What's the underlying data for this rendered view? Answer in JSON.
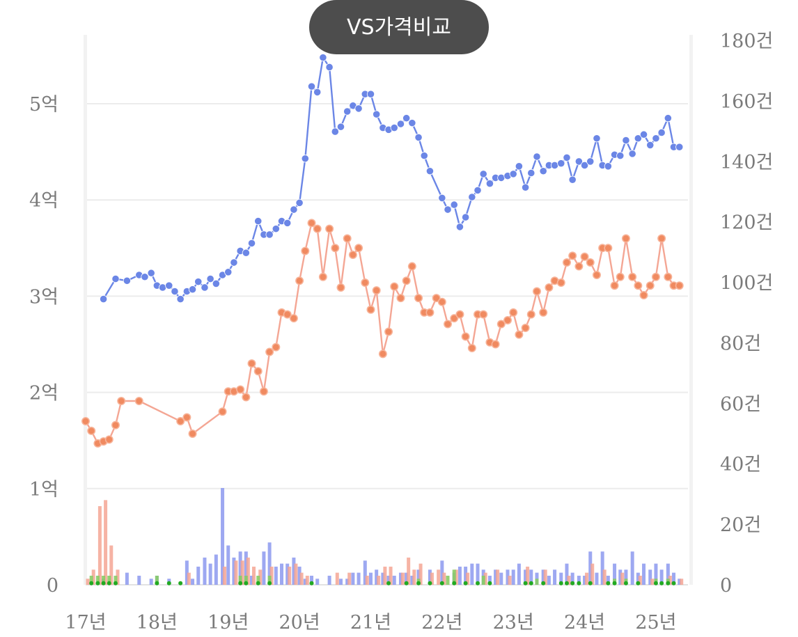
{
  "compare_button": {
    "label": "VS가격비교",
    "color": "#4d4d4d"
  },
  "chart_data": {
    "type": "line",
    "title": "",
    "xlabel": "",
    "ylabel_left": "",
    "ylabel_right": "",
    "grid": true,
    "x_unit": "year",
    "x_ticks": [
      {
        "x": 2017,
        "label": "17년"
      },
      {
        "x": 2018,
        "label": "18년"
      },
      {
        "x": 2019,
        "label": "19년"
      },
      {
        "x": 2020,
        "label": "20년"
      },
      {
        "x": 2021,
        "label": "21년"
      },
      {
        "x": 2022,
        "label": "22년"
      },
      {
        "x": 2023,
        "label": "23년"
      },
      {
        "x": 2024,
        "label": "24년"
      },
      {
        "x": 2025,
        "label": "25년"
      }
    ],
    "left_axis": {
      "range": [
        0,
        5.6
      ],
      "ticks": [
        {
          "v": 0,
          "label": "0"
        },
        {
          "v": 1,
          "label": "1억"
        },
        {
          "v": 2,
          "label": "2억"
        },
        {
          "v": 3,
          "label": "3억"
        },
        {
          "v": 4,
          "label": "4억"
        },
        {
          "v": 5,
          "label": "5억"
        }
      ]
    },
    "right_axis": {
      "range": [
        0,
        180
      ],
      "ticks": [
        {
          "v": 0,
          "label": "0"
        },
        {
          "v": 20,
          "label": "20건"
        },
        {
          "v": 40,
          "label": "40건"
        },
        {
          "v": 60,
          "label": "60건"
        },
        {
          "v": 80,
          "label": "80건"
        },
        {
          "v": 100,
          "label": "100건"
        },
        {
          "v": 120,
          "label": "120건"
        },
        {
          "v": 140,
          "label": "140건"
        },
        {
          "v": 160,
          "label": "160건"
        },
        {
          "v": 180,
          "label": "180건"
        }
      ]
    },
    "series": [
      {
        "axis": "left",
        "kind": "line",
        "color": "#6b86e6",
        "x": [
          2017.25,
          2017.42,
          2017.58,
          2017.75,
          2017.83,
          2017.92,
          2018.0,
          2018.08,
          2018.17,
          2018.25,
          2018.33,
          2018.42,
          2018.5,
          2018.58,
          2018.67,
          2018.75,
          2018.83,
          2018.92,
          2019.0,
          2019.08,
          2019.17,
          2019.25,
          2019.33,
          2019.42,
          2019.5,
          2019.58,
          2019.67,
          2019.75,
          2019.83,
          2019.92,
          2020.0,
          2020.08,
          2020.17,
          2020.25,
          2020.33,
          2020.42,
          2020.5,
          2020.58,
          2020.67,
          2020.75,
          2020.83,
          2020.92,
          2021.0,
          2021.08,
          2021.17,
          2021.25,
          2021.33,
          2021.42,
          2021.5,
          2021.58,
          2021.67,
          2021.75,
          2021.83,
          2022.0,
          2022.08,
          2022.17,
          2022.25,
          2022.33,
          2022.42,
          2022.5,
          2022.58,
          2022.67,
          2022.75,
          2022.83,
          2022.92,
          2023.0,
          2023.08,
          2023.17,
          2023.25,
          2023.33,
          2023.42,
          2023.5,
          2023.58,
          2023.67,
          2023.75,
          2023.83,
          2023.92,
          2024.0,
          2024.08,
          2024.17,
          2024.25,
          2024.33,
          2024.42,
          2024.5,
          2024.58,
          2024.67,
          2024.75,
          2024.83,
          2024.92,
          2025.0,
          2025.08,
          2025.17,
          2025.25,
          2025.33
        ],
        "y": [
          2.97,
          3.18,
          3.16,
          3.22,
          3.2,
          3.24,
          3.11,
          3.09,
          3.11,
          3.05,
          2.97,
          3.05,
          3.07,
          3.15,
          3.09,
          3.18,
          3.13,
          3.22,
          3.25,
          3.35,
          3.47,
          3.45,
          3.55,
          3.78,
          3.64,
          3.64,
          3.7,
          3.78,
          3.76,
          3.9,
          3.97,
          4.43,
          5.18,
          5.12,
          5.48,
          5.38,
          4.71,
          4.76,
          4.92,
          4.98,
          4.95,
          5.1,
          5.1,
          4.89,
          4.75,
          4.73,
          4.75,
          4.79,
          4.85,
          4.8,
          4.65,
          4.46,
          4.3,
          4.02,
          3.9,
          3.95,
          3.72,
          3.82,
          4.03,
          4.1,
          4.27,
          4.17,
          4.23,
          4.23,
          4.25,
          4.27,
          4.35,
          4.13,
          4.28,
          4.45,
          4.3,
          4.36,
          4.36,
          4.38,
          4.44,
          4.21,
          4.4,
          4.36,
          4.4,
          4.64,
          4.36,
          4.35,
          4.47,
          4.46,
          4.62,
          4.48,
          4.64,
          4.68,
          4.57,
          4.64,
          4.7,
          4.85,
          4.55,
          4.55
        ]
      },
      {
        "axis": "left",
        "kind": "line",
        "color": "#f4a694",
        "x": [
          2017.0,
          2017.08,
          2017.17,
          2017.25,
          2017.33,
          2017.42,
          2017.5,
          2017.75,
          2018.33,
          2018.42,
          2018.5,
          2018.92,
          2019.0,
          2019.08,
          2019.17,
          2019.25,
          2019.33,
          2019.42,
          2019.5,
          2019.58,
          2019.67,
          2019.75,
          2019.83,
          2019.92,
          2020.0,
          2020.08,
          2020.17,
          2020.25,
          2020.33,
          2020.42,
          2020.5,
          2020.58,
          2020.67,
          2020.75,
          2020.83,
          2020.92,
          2021.0,
          2021.08,
          2021.17,
          2021.25,
          2021.33,
          2021.42,
          2021.5,
          2021.58,
          2021.67,
          2021.75,
          2021.83,
          2021.92,
          2022.0,
          2022.08,
          2022.17,
          2022.25,
          2022.33,
          2022.42,
          2022.5,
          2022.58,
          2022.67,
          2022.75,
          2022.83,
          2022.92,
          2023.0,
          2023.08,
          2023.17,
          2023.25,
          2023.33,
          2023.42,
          2023.5,
          2023.58,
          2023.67,
          2023.75,
          2023.83,
          2023.92,
          2024.0,
          2024.08,
          2024.17,
          2024.25,
          2024.33,
          2024.42,
          2024.5,
          2024.58,
          2024.67,
          2024.75,
          2024.83,
          2024.92,
          2025.0,
          2025.08,
          2025.17,
          2025.25,
          2025.33
        ],
        "y": [
          1.7,
          1.6,
          1.47,
          1.49,
          1.51,
          1.66,
          1.91,
          1.91,
          1.7,
          1.74,
          1.57,
          1.8,
          2.01,
          2.01,
          2.03,
          1.95,
          2.3,
          2.22,
          2.01,
          2.42,
          2.47,
          2.83,
          2.81,
          2.77,
          3.16,
          3.47,
          3.76,
          3.7,
          3.2,
          3.7,
          3.5,
          3.09,
          3.6,
          3.43,
          3.5,
          3.14,
          2.86,
          3.06,
          2.4,
          2.63,
          3.1,
          2.98,
          3.16,
          3.31,
          2.98,
          2.83,
          2.83,
          2.98,
          2.94,
          2.71,
          2.77,
          2.81,
          2.58,
          2.46,
          2.81,
          2.81,
          2.52,
          2.5,
          2.71,
          2.75,
          2.83,
          2.6,
          2.67,
          2.81,
          3.05,
          2.83,
          3.09,
          3.16,
          3.14,
          3.35,
          3.42,
          3.31,
          3.41,
          3.35,
          3.22,
          3.5,
          3.5,
          3.11,
          3.2,
          3.6,
          3.2,
          3.11,
          3.01,
          3.11,
          3.2,
          3.6,
          3.2,
          3.11,
          3.11
        ]
      },
      {
        "axis": "right",
        "kind": "bar",
        "color": "#8c99ee",
        "x": [
          2017.25,
          2017.58,
          2017.75,
          2017.92,
          2018.0,
          2018.17,
          2018.42,
          2018.5,
          2018.58,
          2018.67,
          2018.75,
          2018.83,
          2018.92,
          2019.0,
          2019.08,
          2019.17,
          2019.25,
          2019.33,
          2019.5,
          2019.58,
          2019.67,
          2019.75,
          2019.83,
          2019.92,
          2020.0,
          2020.08,
          2020.17,
          2020.25,
          2020.42,
          2020.58,
          2020.67,
          2020.75,
          2020.83,
          2020.92,
          2021.0,
          2021.08,
          2021.17,
          2021.25,
          2021.33,
          2021.42,
          2021.5,
          2021.58,
          2021.67,
          2021.83,
          2022.0,
          2022.17,
          2022.25,
          2022.33,
          2022.42,
          2022.5,
          2022.58,
          2022.67,
          2022.75,
          2022.83,
          2022.92,
          2023.0,
          2023.08,
          2023.17,
          2023.25,
          2023.33,
          2023.42,
          2023.5,
          2023.58,
          2023.67,
          2023.75,
          2023.83,
          2023.92,
          2024.0,
          2024.08,
          2024.17,
          2024.25,
          2024.33,
          2024.42,
          2024.5,
          2024.58,
          2024.67,
          2024.75,
          2024.83,
          2024.92,
          2025.0,
          2025.08,
          2025.17,
          2025.25,
          2025.33
        ],
        "y": [
          2,
          4,
          3,
          2,
          3,
          2,
          8,
          2,
          6,
          9,
          7,
          10,
          32,
          13,
          9,
          11,
          11,
          3,
          11,
          14,
          6,
          7,
          7,
          9,
          6,
          2,
          3,
          2,
          3,
          2,
          2,
          4,
          4,
          8,
          4,
          5,
          4,
          3,
          3,
          4,
          4,
          3,
          5,
          5,
          8,
          4,
          6,
          6,
          7,
          7,
          5,
          3,
          5,
          4,
          5,
          5,
          7,
          5,
          5,
          4,
          5,
          3,
          5,
          4,
          7,
          4,
          3,
          3,
          11,
          4,
          11,
          3,
          7,
          5,
          5,
          11,
          4,
          7,
          5,
          7,
          5,
          7,
          4,
          2
        ]
      },
      {
        "axis": "right",
        "kind": "bar",
        "color": "#f4a694",
        "x": [
          2017.0,
          2017.08,
          2017.17,
          2017.25,
          2017.33,
          2017.42,
          2018.42,
          2018.92,
          2019.08,
          2019.17,
          2019.25,
          2019.33,
          2019.42,
          2019.58,
          2019.83,
          2019.92,
          2020.0,
          2020.08,
          2020.5,
          2020.67,
          2020.92,
          2021.08,
          2021.17,
          2021.25,
          2021.42,
          2021.5,
          2021.58,
          2021.67,
          2021.83,
          2021.92,
          2022.0,
          2022.17,
          2022.33,
          2022.58,
          2022.75,
          2022.92,
          2023.17,
          2023.42,
          2023.75,
          2024.0,
          2024.08,
          2024.25,
          2024.5,
          2024.75,
          2024.92,
          2025.17,
          2025.33
        ],
        "y": [
          2,
          5,
          26,
          28,
          13,
          5,
          4,
          6,
          8,
          8,
          9,
          6,
          5,
          6,
          6,
          7,
          4,
          3,
          4,
          4,
          3,
          3,
          6,
          6,
          4,
          9,
          5,
          7,
          4,
          5,
          4,
          5,
          4,
          4,
          5,
          3,
          6,
          5,
          3,
          4,
          7,
          5,
          4,
          3,
          2,
          3,
          2
        ]
      },
      {
        "axis": "right",
        "kind": "bar",
        "color": "#88cc66",
        "x": [
          2017.08,
          2017.17,
          2017.25,
          2017.33,
          2017.42,
          2018.0,
          2019.17,
          2019.25,
          2019.42,
          2019.58,
          2021.67,
          2022.08,
          2022.17,
          2022.58,
          2023.33,
          2024.42,
          2024.58,
          2025.0,
          2025.17
        ],
        "y": [
          3,
          3,
          3,
          3,
          3,
          3,
          3,
          3,
          3,
          3,
          2,
          3,
          5,
          3,
          2,
          2,
          2,
          2,
          2
        ]
      },
      {
        "axis": "right",
        "kind": "scatter",
        "color": "#22aa22",
        "x": [
          2017.08,
          2017.17,
          2017.25,
          2017.33,
          2017.42,
          2018.0,
          2018.17,
          2018.33,
          2019.17,
          2019.25,
          2019.42,
          2019.58,
          2020.17,
          2021.25,
          2021.5,
          2021.67,
          2021.83,
          2022.0,
          2022.17,
          2022.33,
          2022.5,
          2022.67,
          2023.17,
          2023.25,
          2023.42,
          2023.67,
          2023.75,
          2023.83,
          2023.92,
          2024.08,
          2024.33,
          2024.42,
          2024.58,
          2024.75,
          2025.0,
          2025.08,
          2025.17,
          2025.25
        ],
        "y": [
          0.3,
          0.3,
          0.3,
          0.3,
          0.3,
          0.3,
          0.3,
          0.3,
          0.3,
          0.3,
          0.3,
          0.3,
          0.3,
          0.3,
          0.3,
          0.3,
          0.3,
          0.3,
          0.3,
          0.3,
          0.3,
          0.3,
          0.3,
          0.3,
          0.3,
          0.3,
          0.3,
          0.3,
          0.3,
          0.3,
          0.3,
          0.3,
          0.3,
          0.3,
          0.3,
          0.3,
          0.3,
          0.3
        ]
      }
    ]
  }
}
